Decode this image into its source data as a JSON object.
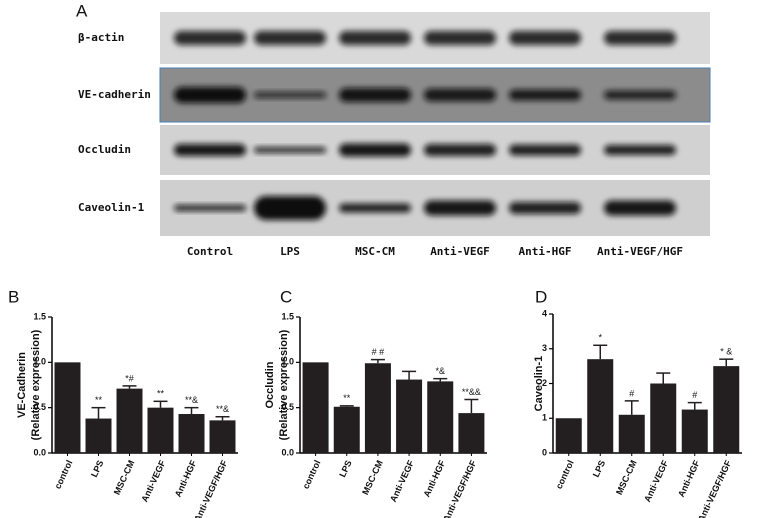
{
  "panel_a": {
    "label": "A",
    "proteins": [
      "β-actin",
      "VE-cadherin",
      "Occludin",
      "Caveolin-1"
    ],
    "lanes": [
      "Control",
      "LPS",
      "MSC-CM",
      "Anti-VEGF",
      "Anti-HGF",
      "Anti-VEGF/HGF"
    ]
  },
  "chart_data": [
    {
      "type": "bar",
      "label": "B",
      "ylabel": [
        "VE-Cadherin",
        "(Relative expression)"
      ],
      "categories": [
        "control",
        "LPS",
        "MSC-CM",
        "Anti-VEGF",
        "Anti-HGF",
        "Anti-VEGF/HGF"
      ],
      "values": [
        1.0,
        0.38,
        0.71,
        0.5,
        0.43,
        0.36
      ],
      "errors": [
        null,
        0.12,
        0.03,
        0.07,
        0.07,
        0.04
      ],
      "annotations": [
        null,
        "**",
        "*#",
        "**",
        "**&",
        "**&"
      ],
      "color": "#231f20",
      "ylim": [
        0,
        1.5
      ],
      "yticks": [
        {
          "value": 0,
          "label": "0.0"
        },
        0.5,
        {
          "value": 1,
          "label": "1.0"
        },
        1.5
      ]
    },
    {
      "type": "bar",
      "label": "C",
      "ylabel": [
        "Occludin",
        "(Relative expression)"
      ],
      "categories": [
        "control",
        "LPS",
        "MSC-CM",
        "Anti-VEGF",
        "Anti-HGF",
        "Anti-VEGF/HGF"
      ],
      "values": [
        1.0,
        0.51,
        0.99,
        0.81,
        0.79,
        0.44
      ],
      "errors": [
        null,
        0.01,
        0.04,
        0.09,
        0.03,
        0.15
      ],
      "annotations": [
        null,
        "**",
        "# #",
        null,
        "*&",
        "**&&"
      ],
      "color": "#231f20",
      "ylim": [
        0,
        1.5
      ],
      "yticks": [
        {
          "value": 0,
          "label": "0.0"
        },
        0.5,
        {
          "value": 1,
          "label": "1.0"
        },
        1.5
      ]
    },
    {
      "type": "bar",
      "label": "D",
      "ylabel": [
        "Caveolin-1"
      ],
      "categories": [
        "control",
        "LPS",
        "MSC-CM",
        "Anti-VEGF",
        "Anti-HGF",
        "Anti-VEGF/HGF"
      ],
      "values": [
        1.0,
        2.7,
        1.1,
        2.0,
        1.25,
        2.5
      ],
      "errors": [
        null,
        0.4,
        0.4,
        0.3,
        0.2,
        0.2
      ],
      "annotations": [
        null,
        "*",
        "#",
        null,
        "#",
        "* &"
      ],
      "color": "#231f20",
      "ylim": [
        0,
        4
      ],
      "yticks": [
        0,
        1,
        2,
        3,
        4
      ]
    }
  ]
}
